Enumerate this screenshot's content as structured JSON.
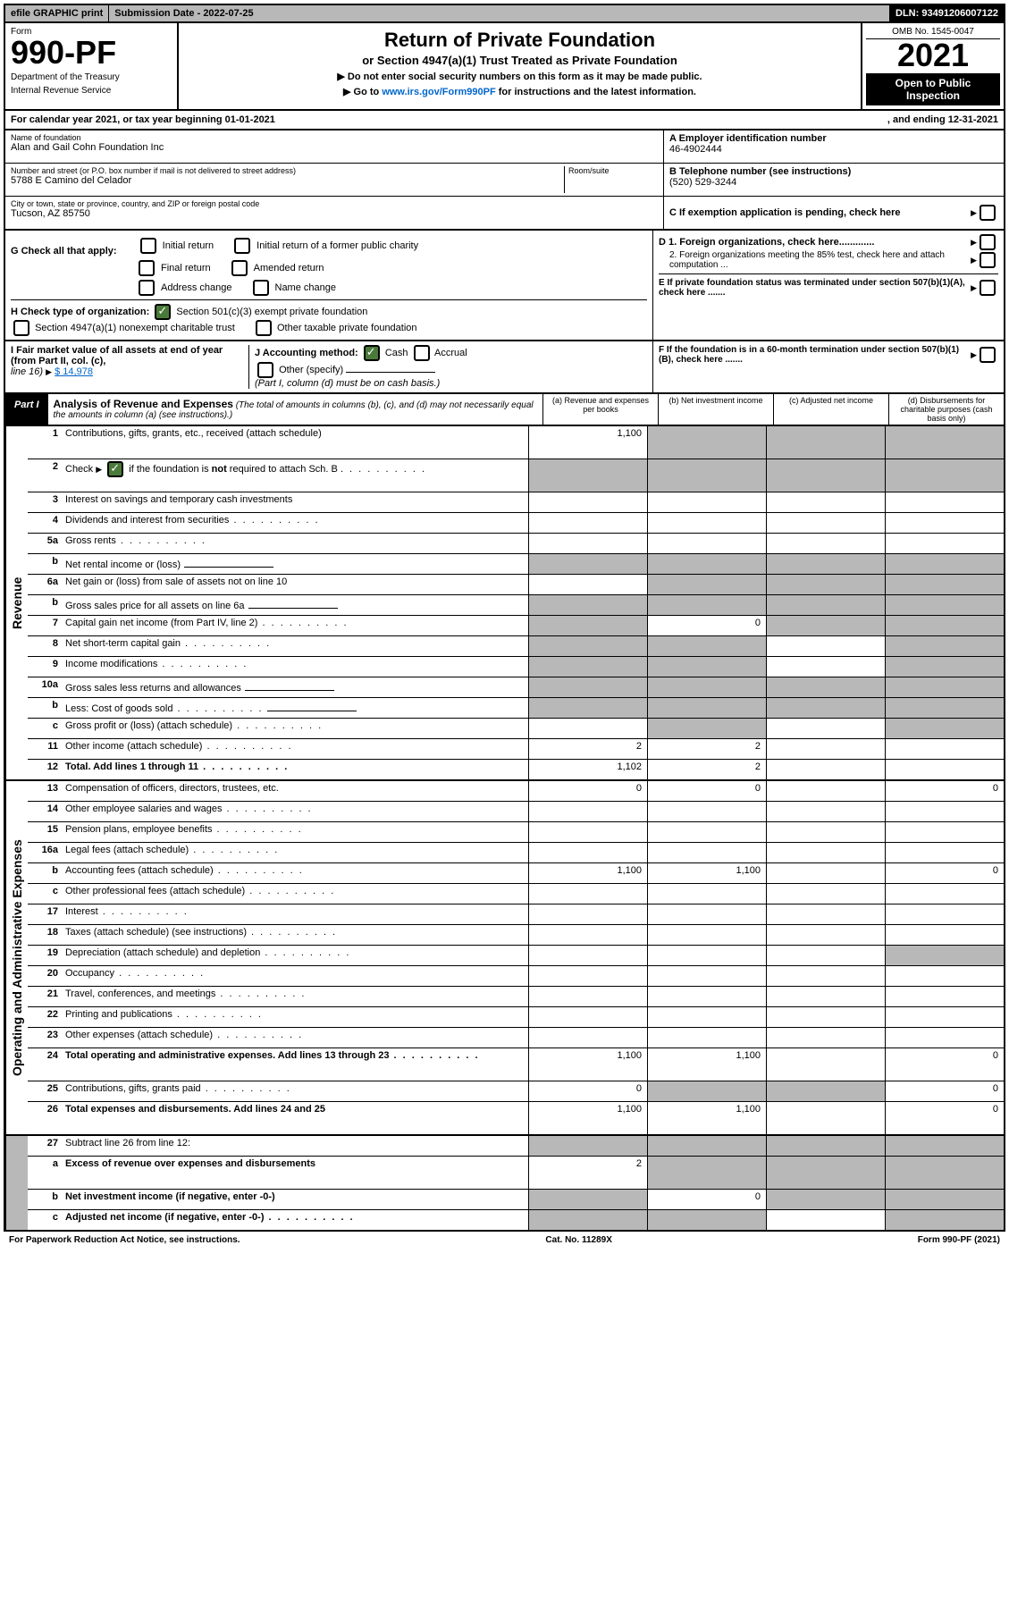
{
  "topbar": {
    "efile": "efile GRAPHIC print",
    "submission": "Submission Date - 2022-07-25",
    "dln": "DLN: 93491206007122"
  },
  "header": {
    "form_label": "Form",
    "form_number": "990-PF",
    "dept1": "Department of the Treasury",
    "dept2": "Internal Revenue Service",
    "title": "Return of Private Foundation",
    "subtitle": "or Section 4947(a)(1) Trust Treated as Private Foundation",
    "note1": "▶ Do not enter social security numbers on this form as it may be made public.",
    "note2": "▶ Go to ",
    "note2_link": "www.irs.gov/Form990PF",
    "note2_rest": " for instructions and the latest information.",
    "omb": "OMB No. 1545-0047",
    "year": "2021",
    "open1": "Open to Public",
    "open2": "Inspection"
  },
  "calyear": {
    "text": "For calendar year 2021, or tax year beginning 01-01-2021",
    "end": ", and ending 12-31-2021"
  },
  "info": {
    "name_label": "Name of foundation",
    "name": "Alan and Gail Cohn Foundation Inc",
    "addr_label": "Number and street (or P.O. box number if mail is not delivered to street address)",
    "addr": "5788 E Camino del Celador",
    "room_label": "Room/suite",
    "city_label": "City or town, state or province, country, and ZIP or foreign postal code",
    "city": "Tucson, AZ  85750",
    "a_label": "A Employer identification number",
    "a_val": "46-4902444",
    "b_label": "B Telephone number (see instructions)",
    "b_val": "(520) 529-3244",
    "c_label": "C If exemption application is pending, check here",
    "d1": "D 1. Foreign organizations, check here.............",
    "d2": "2. Foreign organizations meeting the 85% test, check here and attach computation ...",
    "e": "E  If private foundation status was terminated under section 507(b)(1)(A), check here .......",
    "f": "F  If the foundation is in a 60-month termination under section 507(b)(1)(B), check here ......."
  },
  "g": {
    "label": "G Check all that apply:",
    "opts": [
      "Initial return",
      "Initial return of a former public charity",
      "Final return",
      "Amended return",
      "Address change",
      "Name change"
    ]
  },
  "h": {
    "label": "H Check type of organization:",
    "opt1": "Section 501(c)(3) exempt private foundation",
    "opt2": "Section 4947(a)(1) nonexempt charitable trust",
    "opt3": "Other taxable private foundation"
  },
  "i": {
    "label": "I Fair market value of all assets at end of year (from Part II, col. (c),",
    "line16": "line 16)",
    "val": "$  14,978"
  },
  "j": {
    "label": "J Accounting method:",
    "cash": "Cash",
    "accrual": "Accrual",
    "other": "Other (specify)",
    "note": "(Part I, column (d) must be on cash basis.)"
  },
  "part1": {
    "label": "Part I",
    "title": "Analysis of Revenue and Expenses",
    "desc": "(The total of amounts in columns (b), (c), and (d) may not necessarily equal the amounts in column (a) (see instructions).)",
    "col_a": "(a)   Revenue and expenses per books",
    "col_b": "(b)   Net investment income",
    "col_c": "(c)   Adjusted net income",
    "col_d": "(d)  Disbursements for charitable purposes (cash basis only)"
  },
  "sides": {
    "revenue": "Revenue",
    "expenses": "Operating and Administrative Expenses"
  },
  "rows": [
    {
      "n": "1",
      "d": "Contributions, gifts, grants, etc., received (attach schedule)",
      "a": "1,100",
      "shade_bcd": true,
      "tall": true
    },
    {
      "n": "2",
      "d": "Check ▶ ☑ if the foundation is not required to attach Sch. B",
      "allshade": true,
      "tall": true,
      "hasCheck": true
    },
    {
      "n": "3",
      "d": "Interest on savings and temporary cash investments"
    },
    {
      "n": "4",
      "d": "Dividends and interest from securities",
      "dots": true
    },
    {
      "n": "5a",
      "d": "Gross rents",
      "dots": true
    },
    {
      "n": "b",
      "d": "Net rental income or (loss)",
      "blank": true,
      "allshade": true
    },
    {
      "n": "6a",
      "d": "Net gain or (loss) from sale of assets not on line 10",
      "shade_bcd": true
    },
    {
      "n": "b",
      "d": "Gross sales price for all assets on line 6a",
      "blank": true,
      "allshade": true
    },
    {
      "n": "7",
      "d": "Capital gain net income (from Part IV, line 2)",
      "dots": true,
      "b": "0",
      "shade_a": true,
      "shade_cd": true
    },
    {
      "n": "8",
      "d": "Net short-term capital gain",
      "dots": true,
      "shade_ab": true,
      "shade_d": true
    },
    {
      "n": "9",
      "d": "Income modifications",
      "dots": true,
      "shade_ab": true,
      "shade_d": true
    },
    {
      "n": "10a",
      "d": "Gross sales less returns and allowances",
      "blank": true,
      "allshade": true
    },
    {
      "n": "b",
      "d": "Less: Cost of goods sold",
      "dots": true,
      "blank": true,
      "allshade": true
    },
    {
      "n": "c",
      "d": "Gross profit or (loss) (attach schedule)",
      "dots": true,
      "shade_b": true,
      "shade_d": true
    },
    {
      "n": "11",
      "d": "Other income (attach schedule)",
      "dots": true,
      "a": "2",
      "b": "2"
    },
    {
      "n": "12",
      "d": "Total. Add lines 1 through 11",
      "dots": true,
      "bold": true,
      "a": "1,102",
      "b": "2"
    }
  ],
  "exprows": [
    {
      "n": "13",
      "d": "Compensation of officers, directors, trustees, etc.",
      "a": "0",
      "b": "0",
      "d_": "0"
    },
    {
      "n": "14",
      "d": "Other employee salaries and wages",
      "dots": true
    },
    {
      "n": "15",
      "d": "Pension plans, employee benefits",
      "dots": true
    },
    {
      "n": "16a",
      "d": "Legal fees (attach schedule)",
      "dots": true
    },
    {
      "n": "b",
      "d": "Accounting fees (attach schedule)",
      "dots": true,
      "a": "1,100",
      "b": "1,100",
      "d_": "0"
    },
    {
      "n": "c",
      "d": "Other professional fees (attach schedule)",
      "dots": true
    },
    {
      "n": "17",
      "d": "Interest",
      "dots": true
    },
    {
      "n": "18",
      "d": "Taxes (attach schedule) (see instructions)",
      "dots": true
    },
    {
      "n": "19",
      "d": "Depreciation (attach schedule) and depletion",
      "dots": true,
      "shade_d": true
    },
    {
      "n": "20",
      "d": "Occupancy",
      "dots": true
    },
    {
      "n": "21",
      "d": "Travel, conferences, and meetings",
      "dots": true
    },
    {
      "n": "22",
      "d": "Printing and publications",
      "dots": true
    },
    {
      "n": "23",
      "d": "Other expenses (attach schedule)",
      "dots": true
    },
    {
      "n": "24",
      "d": "Total operating and administrative expenses. Add lines 13 through 23",
      "dots": true,
      "bold": true,
      "a": "1,100",
      "b": "1,100",
      "d_": "0",
      "tall": true
    },
    {
      "n": "25",
      "d": "Contributions, gifts, grants paid",
      "dots": true,
      "a": "0",
      "d_": "0",
      "shade_bc": true
    },
    {
      "n": "26",
      "d": "Total expenses and disbursements. Add lines 24 and 25",
      "bold": true,
      "a": "1,100",
      "b": "1,100",
      "d_": "0",
      "tall": true
    }
  ],
  "botrows": [
    {
      "n": "27",
      "d": "Subtract line 26 from line 12:",
      "allshade": true
    },
    {
      "n": "a",
      "d": "Excess of revenue over expenses and disbursements",
      "bold": true,
      "a": "2",
      "shade_bcd": true,
      "tall": true
    },
    {
      "n": "b",
      "d": "Net investment income (if negative, enter -0-)",
      "bold": true,
      "b": "0",
      "shade_a": true,
      "shade_cd": true
    },
    {
      "n": "c",
      "d": "Adjusted net income (if negative, enter -0-)",
      "bold": true,
      "dots": true,
      "shade_ab": true,
      "shade_d": true
    }
  ],
  "footer": {
    "left": "For Paperwork Reduction Act Notice, see instructions.",
    "mid": "Cat. No. 11289X",
    "right": "Form 990-PF (2021)"
  }
}
